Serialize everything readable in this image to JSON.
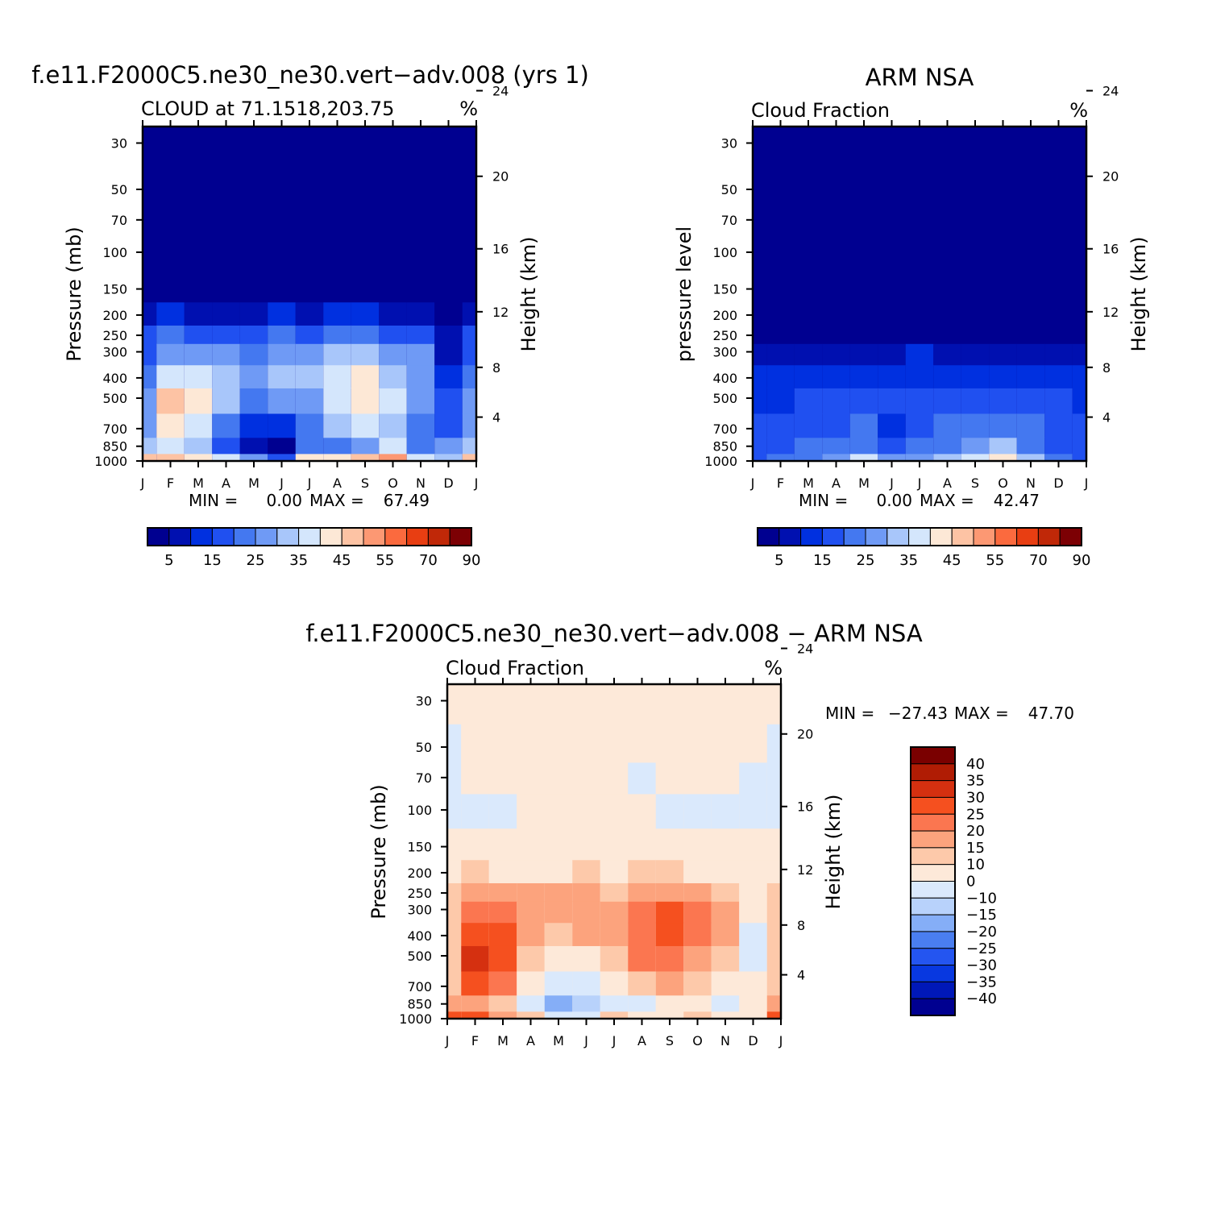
{
  "months": [
    "J",
    "F",
    "M",
    "A",
    "M",
    "J",
    "J",
    "A",
    "S",
    "O",
    "N",
    "D",
    "J"
  ],
  "pressure_ticks": [
    30,
    50,
    70,
    100,
    150,
    200,
    250,
    300,
    400,
    500,
    700,
    850,
    1000
  ],
  "height_ticks": [
    24,
    20,
    16,
    12,
    8,
    4
  ],
  "colors": {
    "abs_levels": [
      "#000090",
      "#0010b0",
      "#0030e0",
      "#2050f0",
      "#4478f0",
      "#6f9af5",
      "#a8c6fa",
      "#d4e6fc",
      "#fde8d6",
      "#fdc3a4",
      "#fc9873",
      "#fb6a3e",
      "#e83e12",
      "#c02808",
      "#7c0004"
    ],
    "diff_levels": [
      "#000090",
      "#0018b8",
      "#0838e0",
      "#2455f0",
      "#4a7ef0",
      "#85aef7",
      "#b8d2fb",
      "#dae9fc",
      "#fde9d9",
      "#fdc9aa",
      "#fca37d",
      "#fb7650",
      "#f5501f",
      "#d53010",
      "#b01c04",
      "#7a0000"
    ]
  },
  "panels": {
    "model": {
      "main_title": "f.e11.F2000C5.ne30_ne30.vert−adv.008 (yrs 1)",
      "left_title": "CLOUD at 71.1518,203.75",
      "units": "%",
      "ylabel_left": "Pressure (mb)",
      "ylabel_right": "Height (km)",
      "min_label": "MIN =",
      "min_value": "0.00",
      "max_label": "MAX =",
      "max_value": "67.49"
    },
    "obs": {
      "main_title": "ARM NSA",
      "left_title": "Cloud Fraction",
      "units": "%",
      "ylabel_left": "pressure level",
      "ylabel_right": "Height (km)",
      "min_label": "MIN =",
      "min_value": "0.00",
      "max_label": "MAX =",
      "max_value": "42.47"
    },
    "diff": {
      "main_title": "f.e11.F2000C5.ne30_ne30.vert−adv.008 − ARM NSA",
      "left_title": "Cloud Fraction",
      "units": "%",
      "ylabel_left": "Pressure (mb)",
      "ylabel_right": "Height (km)",
      "min_label": "MIN =",
      "min_value": "−27.43",
      "max_label": "MAX =",
      "max_value": "47.70"
    }
  },
  "colorbars": {
    "absolute": {
      "labels": [
        "5",
        "15",
        "25",
        "35",
        "45",
        "55",
        "70",
        "90"
      ]
    },
    "difference": {
      "labels": [
        "40",
        "35",
        "30",
        "25",
        "20",
        "15",
        "10",
        "0",
        "−10",
        "−15",
        "−20",
        "−25",
        "−30",
        "−35",
        "−40"
      ]
    }
  },
  "chart_data": [
    {
      "type": "heatmap",
      "title": "f.e11.F2000C5.ne30_ne30.vert−adv.008 (yrs 1)",
      "subtitle": "CLOUD at 71.1518,203.75",
      "units": "%",
      "xlabel": "",
      "ylabel": "Pressure (mb)",
      "ylabel_right": "Height (km)",
      "x": [
        "J",
        "F",
        "M",
        "A",
        "M",
        "J",
        "J",
        "A",
        "S",
        "O",
        "N",
        "D",
        "J"
      ],
      "y": [
        1000,
        850,
        700,
        500,
        400,
        300,
        250,
        200,
        150,
        100,
        70,
        50,
        30
      ],
      "y_scale": "log",
      "ylim": [
        1000,
        25
      ],
      "values": [
        [
          45,
          48,
          42,
          38,
          25,
          18,
          42,
          40,
          45,
          50,
          35,
          30,
          45
        ],
        [
          30,
          35,
          30,
          15,
          8,
          3,
          20,
          22,
          28,
          35,
          20,
          25,
          30
        ],
        [
          28,
          42,
          38,
          22,
          12,
          10,
          20,
          30,
          38,
          32,
          22,
          18,
          28
        ],
        [
          25,
          45,
          40,
          30,
          22,
          25,
          28,
          36,
          40,
          35,
          28,
          15,
          25
        ],
        [
          20,
          38,
          36,
          30,
          25,
          30,
          30,
          36,
          40,
          34,
          28,
          10,
          20
        ],
        [
          18,
          28,
          26,
          25,
          24,
          28,
          26,
          30,
          32,
          28,
          25,
          8,
          18
        ],
        [
          15,
          20,
          18,
          17,
          18,
          20,
          18,
          20,
          20,
          18,
          16,
          5,
          15
        ],
        [
          8,
          10,
          8,
          5,
          8,
          10,
          8,
          10,
          10,
          8,
          6,
          3,
          8
        ],
        [
          2,
          3,
          2,
          2,
          2,
          2,
          2,
          2,
          2,
          2,
          2,
          1,
          2
        ],
        [
          0,
          0,
          0,
          0,
          0,
          0,
          0,
          0,
          0,
          0,
          0,
          0,
          0
        ],
        [
          0,
          0,
          0,
          0,
          0,
          0,
          0,
          0,
          0,
          0,
          0,
          0,
          0
        ],
        [
          0,
          0,
          0,
          0,
          0,
          0,
          0,
          0,
          0,
          0,
          0,
          0,
          0
        ],
        [
          0,
          0,
          0,
          0,
          0,
          0,
          0,
          0,
          0,
          0,
          0,
          0,
          0
        ]
      ],
      "min": 0.0,
      "max": 67.49,
      "levels": [
        0,
        5,
        10,
        15,
        20,
        25,
        30,
        35,
        40,
        45,
        50,
        55,
        60,
        70,
        80,
        90,
        100
      ]
    },
    {
      "type": "heatmap",
      "title": "ARM NSA",
      "subtitle": "Cloud Fraction",
      "units": "%",
      "xlabel": "",
      "ylabel": "pressure level",
      "ylabel_right": "Height (km)",
      "x": [
        "J",
        "F",
        "M",
        "A",
        "M",
        "J",
        "J",
        "A",
        "S",
        "O",
        "N",
        "D",
        "J"
      ],
      "y": [
        1000,
        850,
        700,
        500,
        400,
        300,
        250,
        200,
        150,
        100,
        70,
        50,
        30
      ],
      "y_scale": "log",
      "ylim": [
        1000,
        25
      ],
      "values": [
        [
          18,
          22,
          24,
          28,
          35,
          28,
          28,
          32,
          38,
          40,
          30,
          22,
          18
        ],
        [
          15,
          18,
          20,
          22,
          24,
          16,
          22,
          24,
          28,
          30,
          24,
          18,
          15
        ],
        [
          15,
          15,
          16,
          18,
          20,
          14,
          18,
          20,
          22,
          22,
          20,
          18,
          15
        ],
        [
          14,
          14,
          15,
          16,
          18,
          16,
          16,
          16,
          16,
          16,
          16,
          16,
          14
        ],
        [
          10,
          10,
          11,
          13,
          14,
          14,
          14,
          12,
          12,
          12,
          12,
          12,
          10
        ],
        [
          5,
          5,
          6,
          7,
          8,
          9,
          10,
          8,
          7,
          7,
          7,
          7,
          5
        ],
        [
          1,
          1,
          2,
          2,
          3,
          3,
          4,
          3,
          2,
          2,
          2,
          2,
          1
        ],
        [
          0,
          0,
          0,
          0,
          0,
          0,
          0,
          0,
          0,
          0,
          0,
          0,
          0
        ],
        [
          0,
          0,
          0,
          0,
          0,
          0,
          0,
          0,
          0,
          0,
          0,
          0,
          0
        ],
        [
          0,
          0,
          0,
          0,
          0,
          0,
          0,
          0,
          0,
          0,
          0,
          0,
          0
        ],
        [
          0,
          0,
          0,
          0,
          0,
          0,
          0,
          0,
          0,
          0,
          0,
          0,
          0
        ],
        [
          0,
          0,
          0,
          0,
          0,
          0,
          0,
          0,
          0,
          0,
          0,
          0,
          0
        ],
        [
          0,
          0,
          0,
          0,
          0,
          0,
          0,
          0,
          0,
          0,
          0,
          0,
          0
        ]
      ],
      "min": 0.0,
      "max": 42.47,
      "levels": [
        0,
        5,
        10,
        15,
        20,
        25,
        30,
        35,
        40,
        45,
        50,
        55,
        60,
        70,
        80,
        90,
        100
      ]
    },
    {
      "type": "heatmap",
      "title": "f.e11.F2000C5.ne30_ne30.vert−adv.008 − ARM NSA",
      "subtitle": "Cloud Fraction",
      "units": "%",
      "xlabel": "",
      "ylabel": "Pressure (mb)",
      "ylabel_right": "Height (km)",
      "x": [
        "J",
        "F",
        "M",
        "A",
        "M",
        "J",
        "J",
        "A",
        "S",
        "O",
        "N",
        "D",
        "J"
      ],
      "y": [
        1000,
        850,
        700,
        500,
        400,
        300,
        250,
        200,
        150,
        100,
        70,
        50,
        30
      ],
      "y_scale": "log",
      "ylim": [
        1000,
        25
      ],
      "values": [
        [
          25,
          26,
          18,
          10,
          -10,
          -8,
          14,
          8,
          7,
          10,
          5,
          8,
          25
        ],
        [
          15,
          17,
          10,
          -7,
          -16,
          -13,
          -2,
          -2,
          0,
          5,
          -4,
          7,
          15
        ],
        [
          13,
          27,
          22,
          4,
          -8,
          -4,
          2,
          10,
          16,
          10,
          2,
          0,
          13
        ],
        [
          11,
          31,
          25,
          14,
          4,
          9,
          12,
          20,
          24,
          19,
          12,
          -1,
          11
        ],
        [
          10,
          28,
          25,
          17,
          11,
          16,
          16,
          24,
          28,
          22,
          16,
          -2,
          10
        ],
        [
          13,
          23,
          20,
          18,
          16,
          19,
          16,
          22,
          25,
          21,
          18,
          1,
          13
        ],
        [
          14,
          19,
          16,
          15,
          15,
          17,
          14,
          17,
          18,
          16,
          14,
          3,
          14
        ],
        [
          8,
          10,
          8,
          5,
          8,
          10,
          8,
          10,
          10,
          8,
          6,
          3,
          8
        ],
        [
          2,
          3,
          2,
          2,
          2,
          2,
          2,
          2,
          2,
          2,
          2,
          1,
          2
        ],
        [
          -3,
          -3,
          -3,
          1,
          1,
          1,
          1,
          1,
          -3,
          -3,
          -3,
          -3,
          -3
        ],
        [
          -3,
          1,
          1,
          1,
          1,
          1,
          1,
          -3,
          1,
          1,
          1,
          -3,
          -3
        ],
        [
          -3,
          1,
          1,
          1,
          1,
          1,
          1,
          1,
          1,
          1,
          1,
          1,
          -3
        ],
        [
          1,
          1,
          1,
          1,
          1,
          1,
          1,
          1,
          1,
          1,
          1,
          1,
          1
        ]
      ],
      "min": -27.43,
      "max": 47.7,
      "levels": [
        -50,
        -40,
        -35,
        -30,
        -25,
        -20,
        -15,
        -10,
        0,
        10,
        15,
        20,
        25,
        30,
        35,
        40,
        50
      ]
    }
  ]
}
